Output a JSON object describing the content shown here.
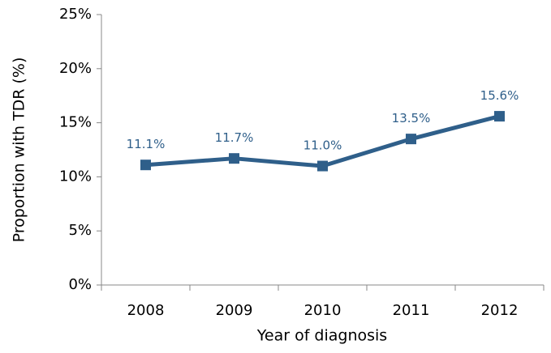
{
  "chart_data": {
    "type": "line",
    "x_label": "Year of diagnosis",
    "y_label": "Proportion with TDR (%)",
    "categories": [
      "2008",
      "2009",
      "2010",
      "2011",
      "2012"
    ],
    "values": [
      11.1,
      11.7,
      11.0,
      13.5,
      15.6
    ],
    "value_labels": [
      "11.1%",
      "11.7%",
      "11.0%",
      "13.5%",
      "15.6%"
    ],
    "color": "#2f5f8a",
    "ylim": [
      0,
      25
    ],
    "yticks": [
      {
        "value": 0,
        "label": "0%"
      },
      {
        "value": 5,
        "label": "5%"
      },
      {
        "value": 10,
        "label": "10%"
      },
      {
        "value": 15,
        "label": "15%"
      },
      {
        "value": 20,
        "label": "20%"
      },
      {
        "value": 25,
        "label": "25%"
      }
    ],
    "grid": false
  }
}
